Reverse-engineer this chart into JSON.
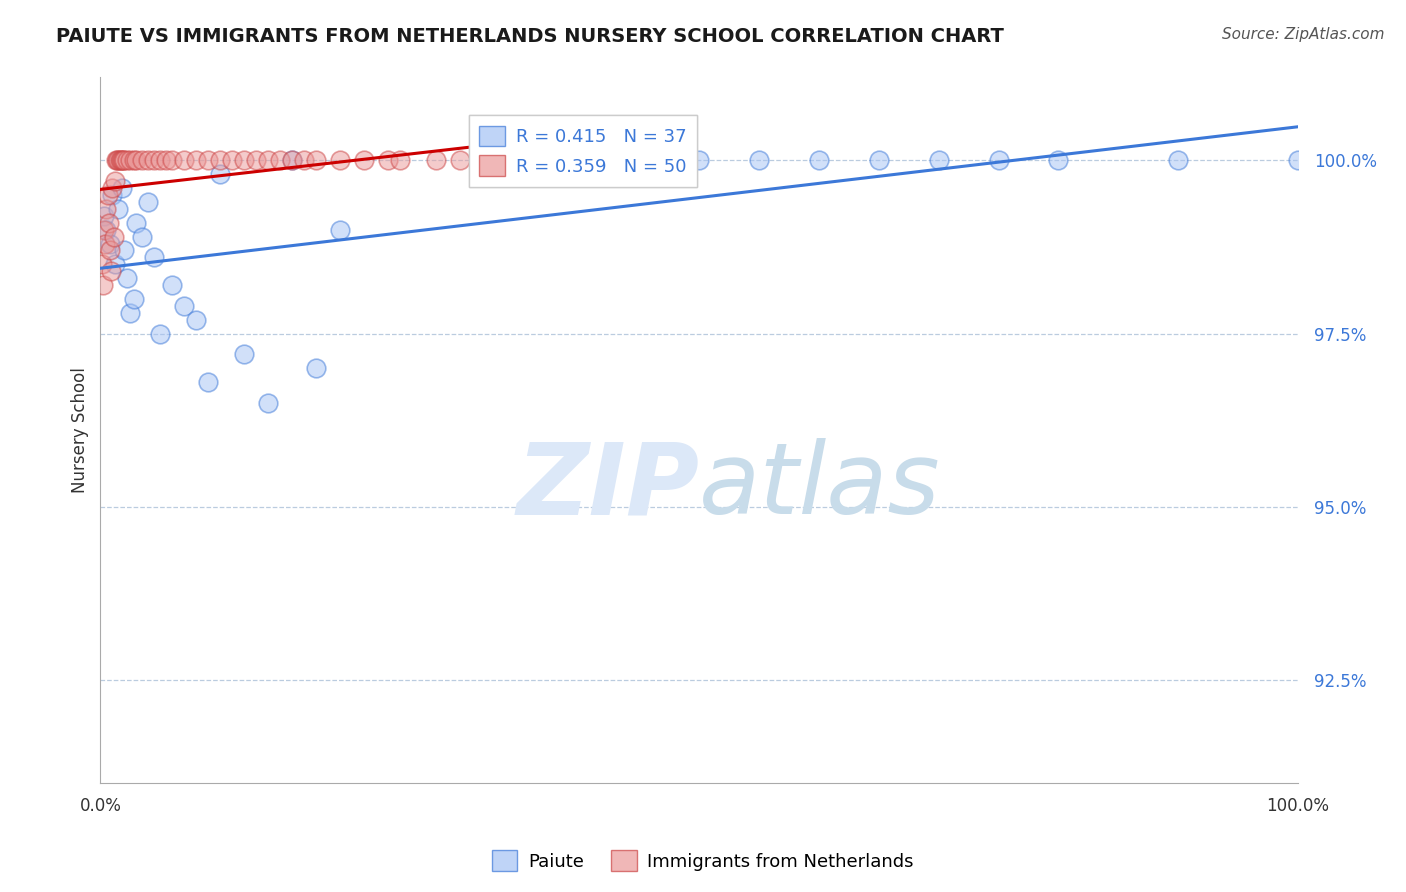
{
  "title": "PAIUTE VS IMMIGRANTS FROM NETHERLANDS NURSERY SCHOOL CORRELATION CHART",
  "source": "Source: ZipAtlas.com",
  "ylabel": "Nursery School",
  "legend_blue_label": "Paiute",
  "legend_pink_label": "Immigrants from Netherlands",
  "r_blue": 0.415,
  "n_blue": 37,
  "r_pink": 0.359,
  "n_pink": 50,
  "blue_color": "#a4c2f4",
  "pink_color": "#ea9999",
  "blue_line_color": "#3c78d8",
  "pink_line_color": "#cc0000",
  "background_color": "#ffffff",
  "grid_color": "#b4c7dc",
  "watermark_color": "#dce8f8",
  "xlim": [
    0,
    100
  ],
  "ylim": [
    91.0,
    101.2
  ],
  "ytick_values": [
    100.0,
    97.5,
    95.0,
    92.5
  ],
  "blue_x": [
    0.3,
    0.5,
    0.8,
    1.0,
    1.2,
    1.5,
    1.8,
    2.0,
    2.2,
    2.5,
    2.8,
    3.0,
    3.5,
    4.0,
    4.5,
    5.0,
    6.0,
    7.0,
    8.0,
    9.0,
    10.0,
    12.0,
    14.0,
    16.0,
    18.0,
    20.0,
    35.0,
    40.0,
    50.0,
    55.0,
    60.0,
    65.0,
    70.0,
    75.0,
    80.0,
    90.0,
    100.0
  ],
  "blue_y": [
    99.2,
    99.0,
    98.8,
    99.5,
    98.5,
    99.3,
    99.6,
    98.7,
    98.3,
    97.8,
    98.0,
    99.1,
    98.9,
    99.4,
    98.6,
    97.5,
    98.2,
    97.9,
    97.7,
    96.8,
    99.8,
    97.2,
    96.5,
    100.0,
    97.0,
    99.0,
    100.0,
    100.0,
    100.0,
    100.0,
    100.0,
    100.0,
    100.0,
    100.0,
    100.0,
    100.0,
    100.0
  ],
  "pink_x": [
    0.1,
    0.2,
    0.3,
    0.4,
    0.5,
    0.6,
    0.7,
    0.8,
    0.9,
    1.0,
    1.1,
    1.2,
    1.3,
    1.4,
    1.5,
    1.6,
    1.7,
    1.8,
    1.9,
    2.0,
    2.2,
    2.5,
    2.8,
    3.0,
    3.5,
    4.0,
    4.5,
    5.0,
    5.5,
    6.0,
    7.0,
    8.0,
    9.0,
    10.0,
    11.0,
    12.0,
    13.0,
    14.0,
    15.0,
    16.0,
    17.0,
    18.0,
    20.0,
    22.0,
    24.0,
    25.0,
    28.0,
    30.0,
    35.0,
    40.0
  ],
  "pink_y": [
    98.5,
    98.2,
    99.0,
    98.8,
    99.3,
    99.5,
    99.1,
    98.7,
    98.4,
    99.6,
    98.9,
    99.7,
    100.0,
    100.0,
    100.0,
    100.0,
    100.0,
    100.0,
    100.0,
    100.0,
    100.0,
    100.0,
    100.0,
    100.0,
    100.0,
    100.0,
    100.0,
    100.0,
    100.0,
    100.0,
    100.0,
    100.0,
    100.0,
    100.0,
    100.0,
    100.0,
    100.0,
    100.0,
    100.0,
    100.0,
    100.0,
    100.0,
    100.0,
    100.0,
    100.0,
    100.0,
    100.0,
    100.0,
    100.0,
    100.0
  ],
  "title_fontsize": 14,
  "source_fontsize": 11,
  "tick_fontsize": 12,
  "ylabel_fontsize": 12,
  "legend_fontsize": 13
}
